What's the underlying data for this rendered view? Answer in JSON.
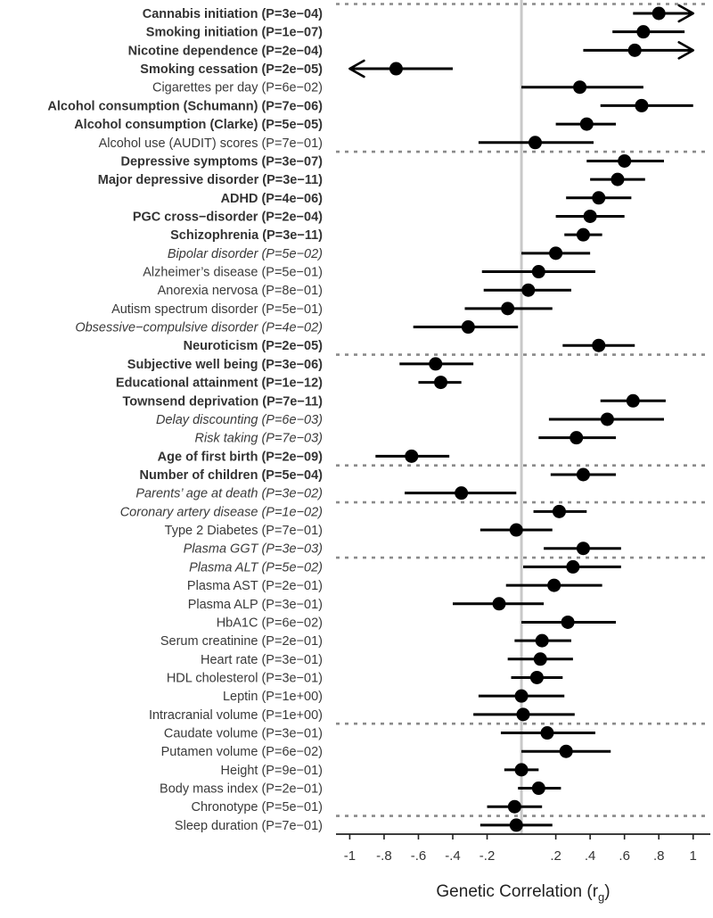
{
  "chart_data": {
    "type": "forest",
    "xlabel": "Genetic Correlation (r",
    "xlabel_subscript": "g",
    "xlabel_suffix": ")",
    "xlim": [
      -1.08,
      1.1
    ],
    "reference_line": 0,
    "x_ticks": [
      {
        "value": -1,
        "label": "-1"
      },
      {
        "value": -0.8,
        "label": "-.8"
      },
      {
        "value": -0.6,
        "label": "-.6"
      },
      {
        "value": -0.4,
        "label": "-.4"
      },
      {
        "value": -0.2,
        "label": "-.2"
      },
      {
        "value": 0.2,
        "label": ".2"
      },
      {
        "value": 0.4,
        "label": ".4"
      },
      {
        "value": 0.6,
        "label": ".6"
      },
      {
        "value": 0.8,
        "label": ".8"
      },
      {
        "value": 1,
        "label": "1"
      }
    ],
    "group_separators_after": [
      7,
      18,
      24,
      26,
      29,
      38,
      43
    ],
    "rows": [
      {
        "label": "Cannabis initiation (P=3e−04)",
        "style": "bold",
        "rg": 0.8,
        "lo": 0.65,
        "hi": 1.0,
        "arrow_hi": true
      },
      {
        "label": "Smoking initiation (P=1e−07)",
        "style": "bold",
        "rg": 0.71,
        "lo": 0.53,
        "hi": 0.95
      },
      {
        "label": "Nicotine dependence (P=2e−04)",
        "style": "bold",
        "rg": 0.66,
        "lo": 0.36,
        "hi": 1.0,
        "arrow_hi": true
      },
      {
        "label": "Smoking cessation (P=2e−05)",
        "style": "bold",
        "rg": -0.73,
        "lo": -1.0,
        "hi": -0.4,
        "arrow_lo": true
      },
      {
        "label": "Cigarettes per day (P=6e−02)",
        "style": "normal",
        "rg": 0.34,
        "lo": 0.0,
        "hi": 0.71
      },
      {
        "label": "Alcohol consumption (Schumann) (P=7e−06)",
        "style": "bold",
        "rg": 0.7,
        "lo": 0.46,
        "hi": 1.0
      },
      {
        "label": "Alcohol consumption (Clarke) (P=5e−05)",
        "style": "bold",
        "rg": 0.38,
        "lo": 0.2,
        "hi": 0.55
      },
      {
        "label": "Alcohol use (AUDIT) scores (P=7e−01)",
        "style": "normal",
        "rg": 0.08,
        "lo": -0.25,
        "hi": 0.42
      },
      {
        "label": "Depressive symptoms (P=3e−07)",
        "style": "bold",
        "rg": 0.6,
        "lo": 0.38,
        "hi": 0.83
      },
      {
        "label": "Major depressive disorder (P=3e−11)",
        "style": "bold",
        "rg": 0.56,
        "lo": 0.4,
        "hi": 0.72
      },
      {
        "label": "ADHD (P=4e−06)",
        "style": "bold",
        "rg": 0.45,
        "lo": 0.26,
        "hi": 0.64
      },
      {
        "label": "PGC cross−disorder (P=2e−04)",
        "style": "bold",
        "rg": 0.4,
        "lo": 0.2,
        "hi": 0.6
      },
      {
        "label": "Schizophrenia (P=3e−11)",
        "style": "bold",
        "rg": 0.36,
        "lo": 0.25,
        "hi": 0.47
      },
      {
        "label": "Bipolar disorder (P=5e−02)",
        "style": "italic",
        "rg": 0.2,
        "lo": 0.0,
        "hi": 0.4
      },
      {
        "label": "Alzheimer’s disease (P=5e−01)",
        "style": "normal",
        "rg": 0.1,
        "lo": -0.23,
        "hi": 0.43
      },
      {
        "label": "Anorexia nervosa (P=8e−01)",
        "style": "normal",
        "rg": 0.04,
        "lo": -0.22,
        "hi": 0.29
      },
      {
        "label": "Autism spectrum disorder (P=5e−01)",
        "style": "normal",
        "rg": -0.08,
        "lo": -0.33,
        "hi": 0.18
      },
      {
        "label": "Obsessive−compulsive disorder (P=4e−02)",
        "style": "italic",
        "rg": -0.31,
        "lo": -0.63,
        "hi": -0.02
      },
      {
        "label": "Neuroticism (P=2e−05)",
        "style": "bold",
        "rg": 0.45,
        "lo": 0.24,
        "hi": 0.66
      },
      {
        "label": "Subjective well being (P=3e−06)",
        "style": "bold",
        "rg": -0.5,
        "lo": -0.71,
        "hi": -0.28
      },
      {
        "label": "Educational attainment (P=1e−12)",
        "style": "bold",
        "rg": -0.47,
        "lo": -0.6,
        "hi": -0.35
      },
      {
        "label": "Townsend deprivation (P=7e−11)",
        "style": "bold",
        "rg": 0.65,
        "lo": 0.46,
        "hi": 0.84
      },
      {
        "label": "Delay discounting (P=6e−03)",
        "style": "italic",
        "rg": 0.5,
        "lo": 0.16,
        "hi": 0.83
      },
      {
        "label": "Risk taking (P=7e−03)",
        "style": "italic",
        "rg": 0.32,
        "lo": 0.1,
        "hi": 0.55
      },
      {
        "label": "Age of first birth (P=2e−09)",
        "style": "bold",
        "rg": -0.64,
        "lo": -0.85,
        "hi": -0.42
      },
      {
        "label": "Number of children (P=5e−04)",
        "style": "bold",
        "rg": 0.36,
        "lo": 0.17,
        "hi": 0.55
      },
      {
        "label": "Parents’ age at death (P=3e−02)",
        "style": "italic",
        "rg": -0.35,
        "lo": -0.68,
        "hi": -0.03
      },
      {
        "label": "Coronary artery disease (P=1e−02)",
        "style": "italic",
        "rg": 0.22,
        "lo": 0.07,
        "hi": 0.38
      },
      {
        "label": "Type 2 Diabetes (P=7e−01)",
        "style": "normal",
        "rg": -0.03,
        "lo": -0.24,
        "hi": 0.18
      },
      {
        "label": "Plasma GGT (P=3e−03)",
        "style": "italic",
        "rg": 0.36,
        "lo": 0.13,
        "hi": 0.58
      },
      {
        "label": "Plasma ALT (P=5e−02)",
        "style": "italic",
        "rg": 0.3,
        "lo": 0.01,
        "hi": 0.58
      },
      {
        "label": "Plasma AST (P=2e−01)",
        "style": "normal",
        "rg": 0.19,
        "lo": -0.09,
        "hi": 0.47
      },
      {
        "label": "Plasma ALP (P=3e−01)",
        "style": "normal",
        "rg": -0.13,
        "lo": -0.4,
        "hi": 0.13
      },
      {
        "label": "HbA1C (P=6e−02)",
        "style": "normal",
        "rg": 0.27,
        "lo": 0.0,
        "hi": 0.55
      },
      {
        "label": "Serum creatinine (P=2e−01)",
        "style": "normal",
        "rg": 0.12,
        "lo": -0.04,
        "hi": 0.29
      },
      {
        "label": "Heart rate (P=3e−01)",
        "style": "normal",
        "rg": 0.11,
        "lo": -0.08,
        "hi": 0.3
      },
      {
        "label": "HDL cholesterol (P=3e−01)",
        "style": "normal",
        "rg": 0.09,
        "lo": -0.06,
        "hi": 0.24
      },
      {
        "label": "Leptin (P=1e+00)",
        "style": "normal",
        "rg": 0.0,
        "lo": -0.25,
        "hi": 0.25
      },
      {
        "label": "Intracranial volume (P=1e+00)",
        "style": "normal",
        "rg": 0.01,
        "lo": -0.28,
        "hi": 0.31
      },
      {
        "label": "Caudate volume (P=3e−01)",
        "style": "normal",
        "rg": 0.15,
        "lo": -0.12,
        "hi": 0.43
      },
      {
        "label": "Putamen volume (P=6e−02)",
        "style": "normal",
        "rg": 0.26,
        "lo": 0.0,
        "hi": 0.52
      },
      {
        "label": "Height (P=9e−01)",
        "style": "normal",
        "rg": 0.0,
        "lo": -0.1,
        "hi": 0.1
      },
      {
        "label": "Body mass index (P=2e−01)",
        "style": "normal",
        "rg": 0.1,
        "lo": -0.02,
        "hi": 0.23
      },
      {
        "label": "Chronotype (P=5e−01)",
        "style": "normal",
        "rg": -0.04,
        "lo": -0.2,
        "hi": 0.12
      },
      {
        "label": "Sleep duration (P=7e−01)",
        "style": "normal",
        "rg": -0.03,
        "lo": -0.24,
        "hi": 0.18
      }
    ]
  }
}
